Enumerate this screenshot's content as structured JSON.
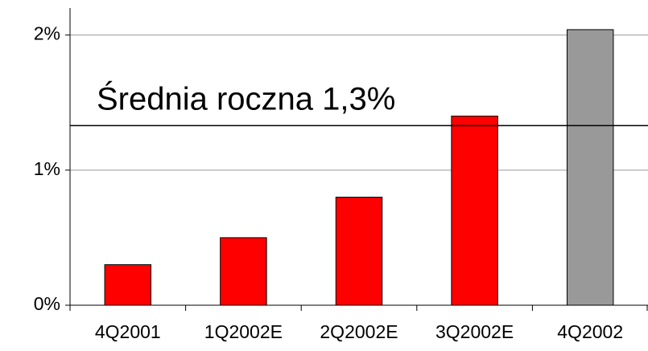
{
  "chart_data": {
    "type": "bar",
    "categories": [
      "4Q2001",
      "1Q2002E",
      "2Q2002E",
      "3Q2002E",
      "4Q2002"
    ],
    "values": [
      0.3,
      0.5,
      0.8,
      1.4,
      2.04
    ],
    "colors": [
      "#ff0000",
      "#ff0000",
      "#ff0000",
      "#ff0000",
      "#999999"
    ],
    "ylim": [
      0,
      2.2
    ],
    "yticks": [
      {
        "value": 0,
        "label": "0%"
      },
      {
        "value": 1,
        "label": "1%"
      },
      {
        "value": 2,
        "label": "2%"
      }
    ],
    "grid": true,
    "reference_line": {
      "value": 1.33,
      "label": "Średnia roczna 1,3%"
    }
  }
}
